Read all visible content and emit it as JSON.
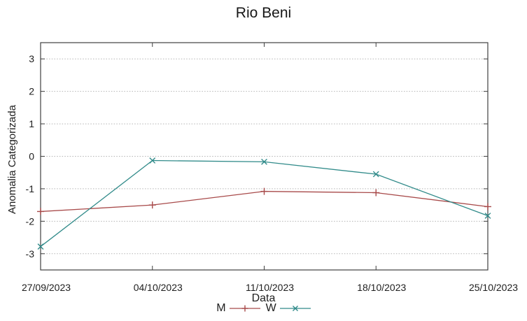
{
  "chart_data": {
    "type": "line",
    "title": "Rio Beni",
    "xlabel": "Data",
    "ylabel": "Anomalia Categorizada",
    "categories": [
      "27/09/2023",
      "04/10/2023",
      "11/10/2023",
      "18/10/2023",
      "25/10/2023"
    ],
    "series": [
      {
        "name": "M",
        "color": "#a84a4a",
        "marker": "plus",
        "values": [
          -1.7,
          -1.5,
          -1.08,
          -1.12,
          -1.55
        ]
      },
      {
        "name": "W",
        "color": "#318b8a",
        "marker": "cross",
        "values": [
          -2.78,
          -0.13,
          -0.17,
          -0.55,
          -1.83
        ]
      }
    ],
    "ylim": [
      -3.5,
      3.5
    ],
    "yticks": [
      -3,
      -2,
      -1,
      0,
      1,
      2,
      3
    ],
    "grid": {
      "y": true,
      "x": false,
      "style": "dotted",
      "color": "#b4b4b4"
    },
    "legend_position": "bottom-center",
    "axis_color": "#3f3f3f",
    "text_color": "#1e1e1e"
  }
}
